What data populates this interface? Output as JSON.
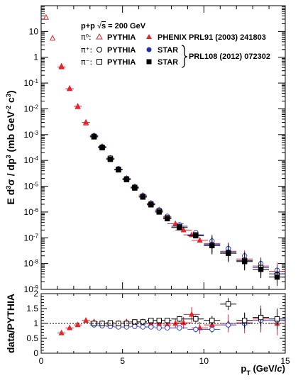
{
  "chart_data": [
    {
      "type": "scatter",
      "title": "",
      "xlabel": "p_T (GeV/c)",
      "ylabel": "E d³σ / dp³ (mb GeV⁻² c³)",
      "ylabel_parts": {
        "main": "E d",
        "s1": "3",
        "mid": "σ / dp",
        "s2": "3",
        "unit": " (mb GeV",
        "s3": "-2",
        "c": " c",
        "s4": "3",
        "end": ")"
      },
      "xlabel_parts": {
        "p": "p",
        "sub": "T",
        "unit": " (GeV/",
        "c": "c",
        "end": ")"
      },
      "xlim": [
        0,
        15
      ],
      "ylim": [
        1e-09,
        100
      ],
      "yscale": "log",
      "x_ticks": [
        "0",
        "5",
        "10",
        "15"
      ],
      "y_ticks": [
        {
          "base": "10",
          "exp": "-9"
        },
        {
          "base": "10",
          "exp": "-8"
        },
        {
          "base": "10",
          "exp": "-7"
        },
        {
          "base": "10",
          "exp": "-6"
        },
        {
          "base": "10",
          "exp": "-5"
        },
        {
          "base": "10",
          "exp": "-4"
        },
        {
          "base": "10",
          "exp": "-3"
        },
        {
          "base": "10",
          "exp": "-2"
        },
        {
          "base": "10",
          "exp": "-1"
        },
        {
          "base": "1",
          "exp": ""
        },
        {
          "base": "10",
          "exp": ""
        }
      ],
      "legend_header": {
        "main": "p+p  ",
        "sqrt": "√",
        "s": "s",
        "rest": " = 200 GeV"
      },
      "legend": [
        {
          "particle": "π⁰:",
          "pythia": "PYTHIA",
          "data": "PHENIX PRL91 (2003) 241803"
        },
        {
          "particle": "π⁺:",
          "pythia": "PYTHIA",
          "data": "STAR"
        },
        {
          "particle": "π⁻:",
          "pythia": "PYTHIA",
          "data": "STAR"
        }
      ],
      "legend_brace_label": "PRL108 (2012) 072302",
      "series": [
        {
          "name": "π⁰ PYTHIA",
          "marker": "open-triangle",
          "color": "#e8242a",
          "x": [
            0.3,
            0.7,
            1.25,
            1.75,
            2.25,
            2.75,
            3.25,
            3.75,
            4.25,
            4.75,
            5.25,
            5.75,
            6.25,
            6.75,
            7.25,
            7.75,
            8.5,
            9.5,
            10.5,
            11.5,
            12.5,
            13.5,
            14.5
          ],
          "y": [
            35,
            5.5,
            0.45,
            0.062,
            0.012,
            0.0028,
            0.00085,
            0.00033,
            0.00012,
            4.5e-05,
            1.9e-05,
            9e-06,
            4.2e-06,
            2.1e-06,
            1.1e-06,
            6.5e-07,
            3e-07,
            1.5e-07,
            6.5e-08,
            3.4e-08,
            1.8e-08,
            9e-09,
            5e-09
          ]
        },
        {
          "name": "PHENIX",
          "marker": "filled-triangle",
          "color": "#e8242a",
          "x": [
            1.25,
            1.75,
            2.25,
            2.75,
            3.25,
            3.75,
            4.25,
            4.75,
            5.25,
            5.75,
            6.25,
            6.75,
            7.25,
            7.75,
            8.25,
            8.75,
            9.25,
            9.75,
            10.5,
            11.5,
            12.5,
            13.5,
            14.5
          ],
          "y": [
            0.42,
            0.06,
            0.0125,
            0.003,
            0.00092,
            0.00035,
            0.00012,
            4.5e-05,
            2e-05,
            9.5e-06,
            4.5e-06,
            2.2e-06,
            1.2e-06,
            6.5e-07,
            3.5e-07,
            2e-07,
            1.3e-07,
            8e-08,
            6e-08,
            3e-08,
            1.5e-08,
            8e-09,
            5e-09
          ]
        },
        {
          "name": "π⁺ PYTHIA",
          "marker": "open-circle",
          "color": "#3344cc",
          "x": [
            3.25,
            3.75,
            4.25,
            4.75,
            5.25,
            5.75,
            6.25,
            6.75,
            7.25,
            7.75,
            8.5,
            9.5,
            10.5,
            11.5,
            12.5,
            13.5,
            14.5
          ],
          "y": [
            0.0009,
            0.00034,
            0.000125,
            4.8e-05,
            2e-05,
            9.5e-06,
            4.3e-06,
            2.2e-06,
            1.2e-06,
            6.8e-07,
            3.2e-07,
            1.6e-07,
            7.5e-08,
            3.8e-08,
            2e-08,
            1e-08,
            5.5e-09
          ]
        },
        {
          "name": "STAR π⁺",
          "marker": "filled-circle",
          "color": "#1f2fb0",
          "x": [
            3.25,
            3.75,
            4.25,
            4.75,
            5.25,
            5.75,
            6.25,
            6.75,
            7.25,
            7.75,
            8.5,
            9.5,
            10.5,
            11.5,
            12.5,
            13.5,
            14.5
          ],
          "y": [
            0.00088,
            0.00033,
            0.00012,
            4.5e-05,
            1.9e-05,
            9e-06,
            4e-06,
            2e-06,
            1.1e-06,
            6e-07,
            2.8e-07,
            1.3e-07,
            5.5e-08,
            2.8e-08,
            1.3e-08,
            7e-09,
            4e-09
          ]
        },
        {
          "name": "π⁻ PYTHIA",
          "marker": "open-square",
          "color": "#000000",
          "x": [
            3.25,
            3.75,
            4.25,
            4.75,
            5.25,
            5.75,
            6.25,
            6.75,
            7.25,
            7.75,
            8.5,
            9.5,
            10.5,
            11.5,
            12.5,
            13.5,
            14.5
          ],
          "y": [
            0.00085,
            0.00032,
            0.00012,
            4.5e-05,
            1.9e-05,
            9e-06,
            4e-06,
            2e-06,
            1.1e-06,
            6e-07,
            2.7e-07,
            1.3e-07,
            5e-08,
            2.6e-08,
            1.3e-08,
            7e-09,
            3.5e-09
          ]
        },
        {
          "name": "STAR π⁻",
          "marker": "filled-square",
          "color": "#000000",
          "x": [
            3.25,
            3.75,
            4.25,
            4.75,
            5.25,
            5.75,
            6.25,
            6.75,
            7.25,
            7.75,
            8.5,
            9.5,
            10.5,
            11.5,
            12.5,
            13.5,
            14.5
          ],
          "y": [
            0.00082,
            0.00031,
            0.00011,
            4.3e-05,
            1.8e-05,
            8.5e-06,
            3.8e-06,
            1.9e-06,
            1e-06,
            5.5e-07,
            2.5e-07,
            1.2e-07,
            5e-08,
            2.5e-08,
            1.2e-08,
            6e-09,
            3e-09
          ]
        }
      ]
    },
    {
      "type": "scatter",
      "title": "",
      "ylabel": "data/PYTHIA",
      "xlabel": "p_T (GeV/c)",
      "xlim": [
        0,
        15
      ],
      "ylim": [
        0,
        2
      ],
      "yscale": "linear",
      "x_ticks": [
        "0",
        "5",
        "10",
        "15"
      ],
      "y_ticks": [
        "0",
        "0.5",
        "1",
        "1.5",
        "2"
      ],
      "reference_line": 1,
      "series": [
        {
          "name": "PHENIX / PYTHIA",
          "marker": "filled-triangle",
          "color": "#e8242a",
          "x": [
            1.25,
            1.75,
            2.25,
            2.75,
            3.25,
            3.75,
            4.25,
            4.75,
            5.25,
            5.75,
            6.25,
            6.75,
            7.25,
            7.75,
            8.25,
            8.75,
            9.25,
            9.75,
            10.5,
            11.5,
            12.5,
            13.5,
            14.5
          ],
          "y": [
            0.68,
            0.85,
            0.95,
            1.1,
            1.05,
            1.0,
            0.95,
            1.0,
            1.05,
            1.0,
            1.05,
            1.0,
            1.0,
            0.95,
            1.0,
            1.02,
            1.3,
            0.85,
            0.95,
            1.0,
            1.02,
            1.15,
            1.0
          ],
          "yerr": [
            0.05,
            0.05,
            0.05,
            0.08,
            0.08,
            0.08,
            0.08,
            0.1,
            0.1,
            0.1,
            0.12,
            0.12,
            0.15,
            0.15,
            0.15,
            0.2,
            0.25,
            0.2,
            0.25,
            0.3,
            0.35,
            0.45,
            0.4
          ]
        },
        {
          "name": "STAR π⁺ / PYTHIA",
          "marker": "open-circle",
          "color": "#3344cc",
          "x": [
            3.25,
            3.75,
            4.25,
            4.75,
            5.25,
            5.75,
            6.25,
            6.75,
            7.25,
            7.75,
            8.5,
            9.5,
            10.5,
            11.5,
            12.5,
            13.5,
            14.5
          ],
          "y": [
            0.95,
            0.92,
            0.9,
            0.88,
            0.88,
            0.9,
            0.88,
            0.88,
            0.85,
            0.85,
            0.85,
            0.8,
            0.8,
            0.95,
            1.0,
            1.1,
            1.1
          ],
          "yerr": [
            0.05,
            0.05,
            0.05,
            0.05,
            0.05,
            0.05,
            0.06,
            0.06,
            0.07,
            0.07,
            0.08,
            0.1,
            0.12,
            0.15,
            0.2,
            0.3,
            0.35
          ]
        },
        {
          "name": "STAR π⁻ / PYTHIA",
          "marker": "open-square",
          "color": "#000000",
          "x": [
            3.25,
            3.75,
            4.25,
            4.75,
            5.25,
            5.75,
            6.25,
            6.75,
            7.25,
            7.75,
            8.5,
            9.5,
            10.5,
            11.5,
            12.5,
            13.5,
            14.5
          ],
          "y": [
            1.0,
            1.0,
            1.02,
            1.0,
            1.0,
            1.05,
            1.05,
            1.1,
            1.1,
            1.1,
            1.15,
            1.15,
            1.1,
            1.65,
            1.1,
            1.2,
            1.15
          ],
          "yerr": [
            0.05,
            0.05,
            0.05,
            0.05,
            0.05,
            0.06,
            0.06,
            0.07,
            0.08,
            0.08,
            0.1,
            0.12,
            0.15,
            0.2,
            0.25,
            0.3,
            0.35
          ]
        }
      ]
    }
  ]
}
